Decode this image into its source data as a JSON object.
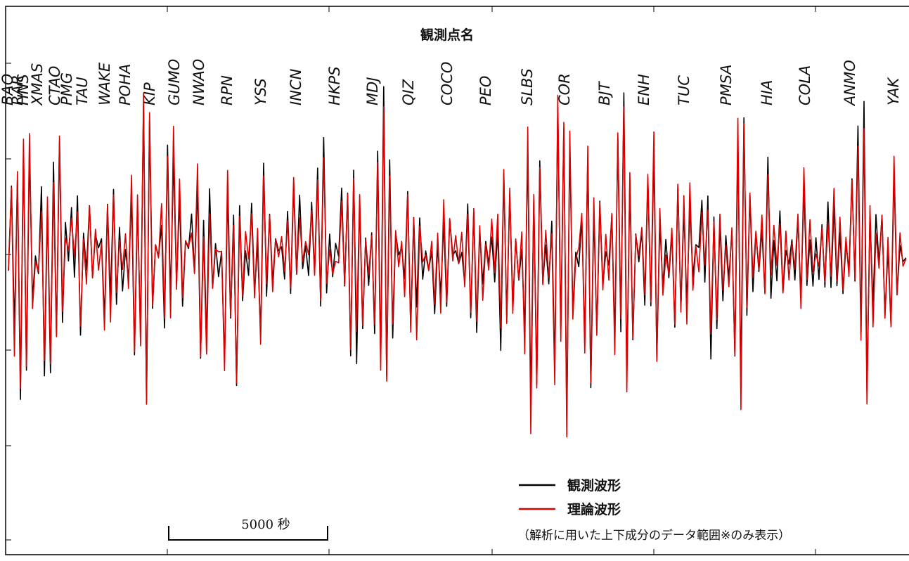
{
  "chart_data": {
    "type": "line",
    "title": "観測点名",
    "stations": [
      "BAO",
      "RAR",
      "HNS",
      "XMAS",
      "CTAO",
      "PMG",
      "TAU",
      "WAKE",
      "POHA",
      "KIP",
      "GUMO",
      "NWAO",
      "RPN",
      "YSS",
      "INCN",
      "HKPS",
      "MDJ",
      "QIZ",
      "COCO",
      "PEO",
      "SLBS",
      "COR",
      "BJT",
      "ENH",
      "TUC",
      "PMSA",
      "HIA",
      "COLA",
      "ANMO",
      "YAK"
    ],
    "series": [
      {
        "name": "観測波形",
        "color": "#000000",
        "peaks": [
          0.9,
          0.85,
          0.4,
          0.55,
          0.75,
          0.5,
          0.5,
          0.7,
          0.4,
          0.3,
          0.5,
          1.0,
          0.75,
          0.3,
          0.35,
          0.6,
          0.45,
          0.7,
          1.0,
          0.85,
          1.0,
          0.5,
          0.4,
          0.45,
          0.7,
          0.5,
          0.35,
          0.35,
          0.75,
          0.4
        ]
      },
      {
        "name": "理論波形",
        "color": "#dd0000",
        "peaks": [
          0.95,
          0.8,
          0.45,
          0.6,
          0.8,
          0.55,
          0.5,
          0.75,
          0.45,
          0.3,
          0.4,
          0.9,
          0.7,
          0.35,
          0.35,
          0.55,
          0.45,
          0.75,
          1.0,
          0.8,
          1.0,
          0.55,
          0.45,
          0.45,
          0.75,
          0.5,
          0.35,
          0.35,
          0.7,
          0.4
        ]
      }
    ],
    "scale_bar": {
      "label": "5000 秒",
      "value": 5000,
      "unit": "秒"
    },
    "note": "（解析に用いた上下成分のデータ範囲※のみ表示）",
    "legend_position": "bottom-right",
    "grid": false
  }
}
